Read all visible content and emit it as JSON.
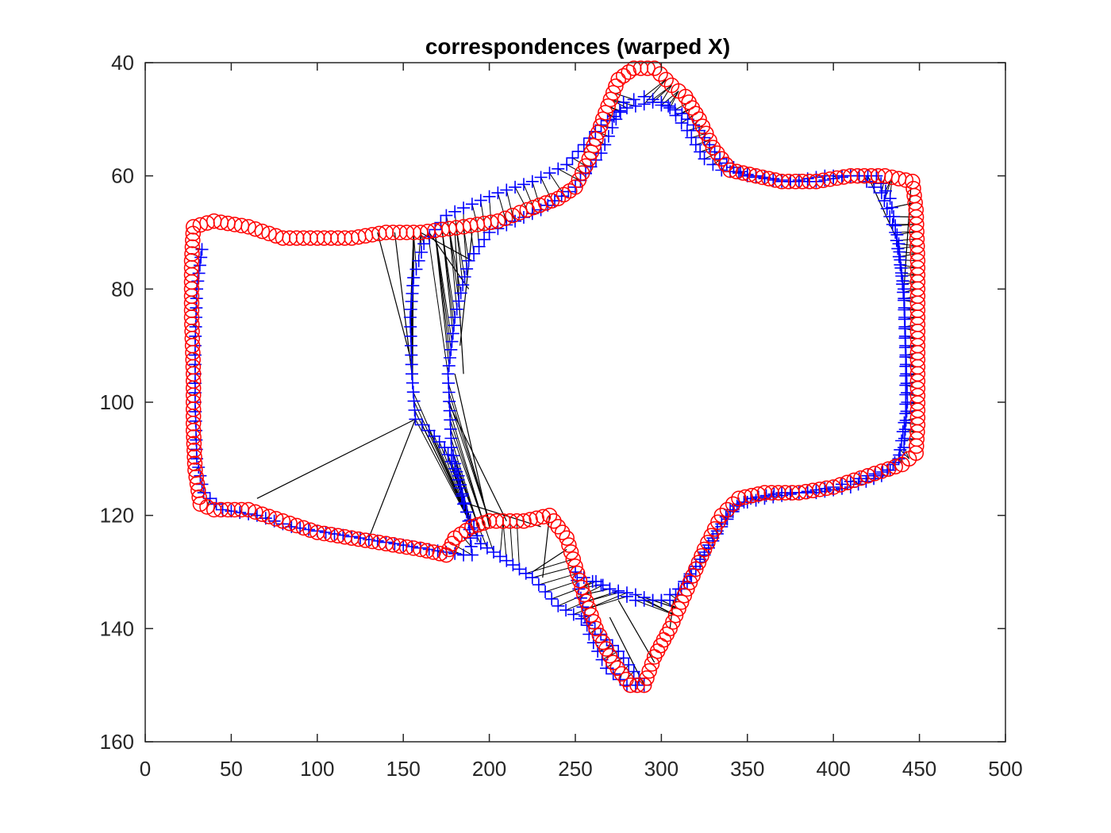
{
  "chart_data": {
    "type": "scatter",
    "title": "correspondences (warped X)",
    "xlabel": "",
    "ylabel": "",
    "xlim": [
      0,
      500
    ],
    "ylim": [
      160,
      40
    ],
    "y_reversed": true,
    "xticks": [
      0,
      50,
      100,
      150,
      200,
      250,
      300,
      350,
      400,
      450,
      500
    ],
    "yticks": [
      40,
      60,
      80,
      100,
      120,
      140,
      160
    ],
    "grid": false,
    "legend": "none",
    "colors": {
      "circles": "#ff0000",
      "crosses": "#0000ff",
      "lines": "#000000",
      "axes": "#262626"
    },
    "series": [
      {
        "marker": "o",
        "color": "#ff0000",
        "outline": [
          [
            28,
            69
          ],
          [
            27,
            75
          ],
          [
            27,
            85
          ],
          [
            28,
            95
          ],
          [
            28,
            105
          ],
          [
            29,
            112
          ],
          [
            32,
            118
          ],
          [
            40,
            119
          ],
          [
            60,
            119
          ],
          [
            80,
            121
          ],
          [
            100,
            123
          ],
          [
            120,
            124
          ],
          [
            140,
            125
          ],
          [
            160,
            126
          ],
          [
            175,
            127
          ],
          [
            180,
            124
          ],
          [
            190,
            122
          ],
          [
            200,
            121
          ],
          [
            220,
            121
          ],
          [
            235,
            120
          ],
          [
            245,
            124
          ],
          [
            255,
            134
          ],
          [
            262,
            140
          ],
          [
            272,
            146
          ],
          [
            282,
            150
          ],
          [
            290,
            150
          ],
          [
            296,
            145
          ],
          [
            305,
            140
          ],
          [
            315,
            133
          ],
          [
            325,
            126
          ],
          [
            335,
            120
          ],
          [
            345,
            117
          ],
          [
            360,
            116
          ],
          [
            380,
            116
          ],
          [
            400,
            115
          ],
          [
            420,
            113
          ],
          [
            440,
            111
          ],
          [
            448,
            109
          ],
          [
            449,
            104
          ],
          [
            449,
            95
          ],
          [
            449,
            85
          ],
          [
            449,
            75
          ],
          [
            448,
            66
          ],
          [
            446,
            61
          ],
          [
            430,
            60
          ],
          [
            410,
            60
          ],
          [
            390,
            61
          ],
          [
            370,
            61
          ],
          [
            355,
            60
          ],
          [
            340,
            59
          ],
          [
            330,
            55
          ],
          [
            322,
            50
          ],
          [
            314,
            46
          ],
          [
            306,
            44
          ],
          [
            296,
            41
          ],
          [
            284,
            41
          ],
          [
            275,
            43
          ],
          [
            266,
            50
          ],
          [
            258,
            57
          ],
          [
            250,
            62
          ],
          [
            240,
            64
          ],
          [
            222,
            66
          ],
          [
            205,
            68
          ],
          [
            185,
            69
          ],
          [
            160,
            70
          ],
          [
            140,
            70
          ],
          [
            120,
            71
          ],
          [
            100,
            71
          ],
          [
            80,
            71
          ],
          [
            60,
            69
          ],
          [
            40,
            68
          ],
          [
            28,
            69
          ]
        ]
      },
      {
        "marker": "+",
        "color": "#0000ff",
        "outline": [
          [
            33,
            73
          ],
          [
            30,
            80
          ],
          [
            29,
            90
          ],
          [
            29,
            100
          ],
          [
            30,
            110
          ],
          [
            34,
            116
          ],
          [
            45,
            119
          ],
          [
            65,
            120
          ],
          [
            85,
            122
          ],
          [
            105,
            123
          ],
          [
            125,
            124
          ],
          [
            145,
            125
          ],
          [
            165,
            126
          ],
          [
            185,
            127
          ],
          [
            190,
            127
          ],
          [
            188,
            121
          ],
          [
            182,
            113
          ],
          [
            174,
            108
          ],
          [
            165,
            105
          ],
          [
            157,
            103
          ],
          [
            155,
            95
          ],
          [
            154,
            85
          ],
          [
            156,
            78
          ],
          [
            162,
            72
          ],
          [
            175,
            67
          ],
          [
            190,
            65
          ],
          [
            205,
            63
          ],
          [
            225,
            61
          ],
          [
            245,
            58
          ],
          [
            265,
            51
          ],
          [
            280,
            48
          ],
          [
            295,
            47
          ],
          [
            305,
            48
          ],
          [
            315,
            52
          ],
          [
            325,
            57
          ],
          [
            335,
            59
          ],
          [
            355,
            60
          ],
          [
            375,
            61
          ],
          [
            395,
            60
          ],
          [
            415,
            60
          ],
          [
            428,
            63
          ],
          [
            436,
            70
          ],
          [
            441,
            80
          ],
          [
            442,
            90
          ],
          [
            443,
            100
          ],
          [
            441,
            108
          ],
          [
            433,
            112
          ],
          [
            420,
            113
          ],
          [
            400,
            115
          ],
          [
            380,
            116
          ],
          [
            360,
            117
          ],
          [
            345,
            118
          ],
          [
            335,
            122
          ],
          [
            325,
            127
          ],
          [
            315,
            132
          ],
          [
            305,
            135
          ],
          [
            295,
            135
          ],
          [
            285,
            134
          ],
          [
            270,
            133
          ],
          [
            255,
            131
          ],
          [
            250,
            130
          ],
          [
            252,
            133
          ],
          [
            258,
            141
          ],
          [
            268,
            147
          ],
          [
            280,
            150
          ],
          [
            290,
            150
          ],
          [
            275,
            144
          ],
          [
            258,
            139
          ],
          [
            240,
            136
          ],
          [
            225,
            131
          ],
          [
            210,
            128
          ],
          [
            195,
            125
          ],
          [
            185,
            118
          ],
          [
            178,
            108
          ],
          [
            176,
            95
          ],
          [
            180,
            85
          ],
          [
            188,
            75
          ],
          [
            200,
            70
          ],
          [
            215,
            68
          ],
          [
            230,
            66
          ],
          [
            250,
            62
          ],
          [
            265,
            56
          ],
          [
            278,
            47
          ],
          [
            290,
            46
          ],
          [
            300,
            47
          ],
          [
            312,
            49
          ],
          [
            322,
            52
          ],
          [
            334,
            57
          ],
          [
            350,
            60
          ],
          [
            370,
            61
          ],
          [
            390,
            61
          ],
          [
            410,
            60
          ],
          [
            425,
            60
          ],
          [
            433,
            64
          ],
          [
            438,
            72
          ],
          [
            441,
            82
          ],
          [
            442,
            92
          ],
          [
            442,
            102
          ],
          [
            438,
            110
          ],
          [
            428,
            113
          ],
          [
            410,
            115
          ],
          [
            390,
            116
          ],
          [
            370,
            116
          ],
          [
            352,
            117
          ],
          [
            340,
            119
          ],
          [
            330,
            124
          ],
          [
            320,
            129
          ],
          [
            310,
            133
          ],
          [
            300,
            135
          ],
          [
            285,
            135
          ],
          [
            270,
            133
          ],
          [
            258,
            131
          ]
        ]
      }
    ],
    "long_correspondences": [
      [
        [
          65,
          117
        ],
        [
          157,
          103
        ]
      ],
      [
        [
          130,
          124
        ],
        [
          157,
          103
        ]
      ],
      [
        [
          135,
          70
        ],
        [
          154,
          92
        ]
      ],
      [
        [
          145,
          70
        ],
        [
          155,
          95
        ]
      ],
      [
        [
          160,
          70
        ],
        [
          190,
          75
        ]
      ],
      [
        [
          165,
          70
        ],
        [
          188,
          80
        ]
      ],
      [
        [
          180,
          70
        ],
        [
          185,
          95
        ]
      ],
      [
        [
          190,
          70
        ],
        [
          183,
          90
        ]
      ],
      [
        [
          200,
          122
        ],
        [
          180,
          95
        ]
      ],
      [
        [
          210,
          121
        ],
        [
          176,
          100
        ]
      ],
      [
        [
          230,
          122
        ],
        [
          188,
          118
        ]
      ],
      [
        [
          235,
          120
        ],
        [
          231,
          131
        ]
      ],
      [
        [
          245,
          126
        ],
        [
          225,
          130
        ]
      ],
      [
        [
          270,
          138
        ],
        [
          290,
          150
        ]
      ],
      [
        [
          275,
          135
        ],
        [
          296,
          146
        ]
      ],
      [
        [
          307,
          135
        ],
        [
          305,
          140
        ]
      ],
      [
        [
          420,
          60
        ],
        [
          438,
          72
        ]
      ],
      [
        [
          445,
          62
        ],
        [
          441,
          80
        ]
      ]
    ]
  }
}
